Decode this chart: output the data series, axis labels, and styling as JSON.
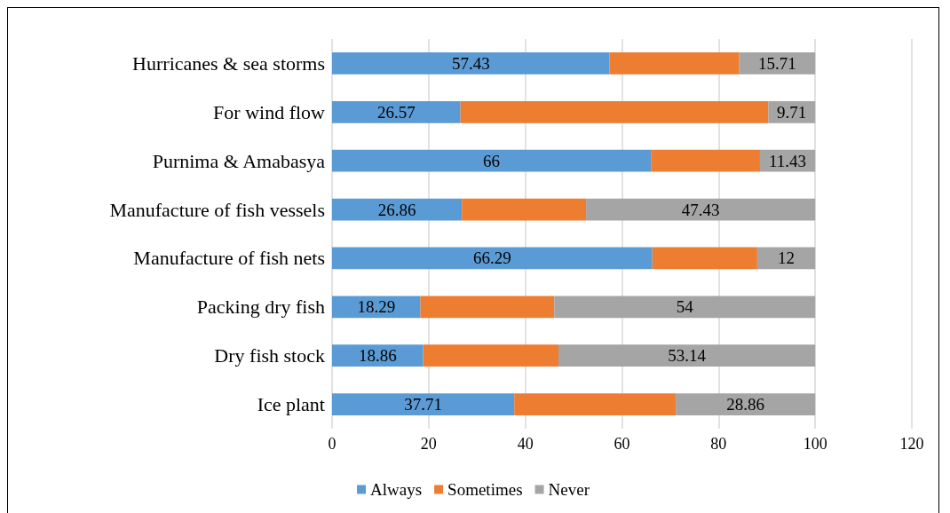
{
  "chart_data": {
    "type": "bar",
    "orientation": "horizontal",
    "stacked": true,
    "categories": [
      "Hurricanes & sea storms",
      "For wind flow",
      "Purnima & Amabasya",
      "Manufacture of fish vessels",
      "Manufacture of fish nets",
      "Packing dry fish",
      "Dry fish stock",
      "Ice plant"
    ],
    "series": [
      {
        "name": "Always",
        "color": "#5b9bd5",
        "values": [
          57.43,
          26.57,
          66,
          26.86,
          66.29,
          18.29,
          18.86,
          37.71
        ],
        "value_labels": [
          "57.43",
          "26.57",
          "66",
          "26.86",
          "66.29",
          "18.29",
          "18.86",
          "37.71"
        ]
      },
      {
        "name": "Sometimes",
        "color": "#ed7d31",
        "values": [
          26.86,
          63.72,
          22.57,
          25.71,
          21.71,
          27.71,
          28,
          33.43
        ]
      },
      {
        "name": "Never",
        "color": "#a5a5a5",
        "values": [
          15.71,
          9.71,
          11.43,
          47.43,
          12,
          54,
          53.14,
          28.86
        ],
        "value_labels": [
          "15.71",
          "9.71",
          "11.43",
          "47.43",
          "12",
          "54",
          "53.14",
          "28.86"
        ]
      }
    ],
    "xlim": [
      0,
      120
    ],
    "xticks": [
      0,
      20,
      40,
      60,
      80,
      100,
      120
    ],
    "grid": "x",
    "legend": "bottom"
  }
}
